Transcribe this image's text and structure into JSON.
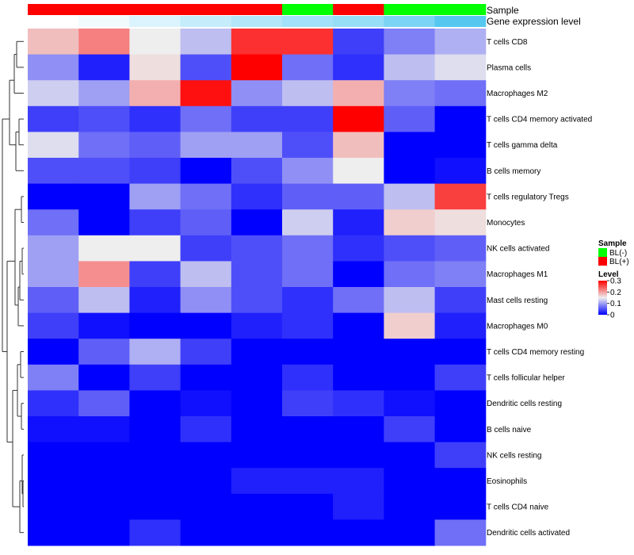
{
  "chart_data": {
    "type": "heatmap",
    "annotations": {
      "sample": {
        "title": "Sample",
        "values": [
          "BL(+)",
          "BL(+)",
          "BL(+)",
          "BL(+)",
          "BL(+)",
          "BL(-)",
          "BL(+)",
          "BL(-)",
          "BL(-)"
        ]
      },
      "gene_expression": {
        "title": "Gene expression level",
        "values": [
          0.0,
          0.08,
          0.22,
          0.35,
          0.45,
          0.55,
          0.62,
          0.78,
          1.0
        ]
      }
    },
    "rows": [
      "T cells CD8",
      "Plasma cells",
      "Macrophages M2",
      "T cells CD4 memory activated",
      "T cells gamma delta",
      "B cells memory",
      "T cells regulatory  Tregs",
      "Monocytes",
      "NK cells activated",
      "Macrophages M1",
      "Mast cells resting",
      "Macrophages M0",
      "T cells CD4 memory resting",
      "T cells follicular helper",
      "Dendritic cells resting",
      "B cells naive",
      "NK cells resting",
      "Eosinophils",
      "T cells CD4 naive",
      "Dendritic cells activated"
    ],
    "values": [
      [
        0.18,
        0.22,
        0.15,
        0.12,
        0.27,
        0.27,
        0.04,
        0.08,
        0.11
      ],
      [
        0.09,
        0.02,
        0.16,
        0.05,
        0.3,
        0.07,
        0.03,
        0.12,
        0.14
      ],
      [
        0.13,
        0.1,
        0.19,
        0.29,
        0.09,
        0.12,
        0.19,
        0.08,
        0.07
      ],
      [
        0.04,
        0.05,
        0.03,
        0.07,
        0.04,
        0.04,
        0.3,
        0.06,
        0.0
      ],
      [
        0.14,
        0.07,
        0.06,
        0.1,
        0.1,
        0.05,
        0.18,
        0.0,
        0.0
      ],
      [
        0.05,
        0.05,
        0.04,
        0.0,
        0.05,
        0.09,
        0.15,
        0.0,
        0.01
      ],
      [
        0.0,
        0.0,
        0.1,
        0.07,
        0.03,
        0.06,
        0.06,
        0.12,
        0.26
      ],
      [
        0.07,
        0.0,
        0.04,
        0.06,
        0.0,
        0.13,
        0.02,
        0.17,
        0.16
      ],
      [
        0.1,
        0.15,
        0.15,
        0.04,
        0.05,
        0.07,
        0.03,
        0.05,
        0.06
      ],
      [
        0.1,
        0.21,
        0.04,
        0.12,
        0.05,
        0.07,
        0.0,
        0.07,
        0.08
      ],
      [
        0.06,
        0.12,
        0.02,
        0.09,
        0.05,
        0.03,
        0.07,
        0.12,
        0.04
      ],
      [
        0.04,
        0.01,
        0.0,
        0.0,
        0.02,
        0.03,
        0.0,
        0.17,
        0.02
      ],
      [
        0.0,
        0.06,
        0.11,
        0.04,
        0.0,
        0.0,
        0.0,
        0.0,
        0.0
      ],
      [
        0.08,
        0.0,
        0.04,
        0.0,
        0.0,
        0.03,
        0.0,
        0.0,
        0.04
      ],
      [
        0.03,
        0.06,
        0.0,
        0.01,
        0.0,
        0.04,
        0.03,
        0.01,
        0.0
      ],
      [
        0.01,
        0.01,
        0.0,
        0.03,
        0.0,
        0.0,
        0.0,
        0.04,
        0.0
      ],
      [
        0.0,
        0.0,
        0.0,
        0.0,
        0.0,
        0.0,
        0.0,
        0.0,
        0.04
      ],
      [
        0.0,
        0.0,
        0.0,
        0.0,
        0.02,
        0.02,
        0.02,
        0.0,
        0.0
      ],
      [
        0.0,
        0.0,
        0.0,
        0.0,
        0.0,
        0.0,
        0.02,
        0.0,
        0.0
      ],
      [
        0.0,
        0.0,
        0.03,
        0.0,
        0.0,
        0.0,
        0.0,
        0.0,
        0.07
      ]
    ],
    "color_scale": {
      "min": 0,
      "mid": 0.15,
      "max": 0.3,
      "low_color": "#0000ff",
      "mid_color": "#eeeeee",
      "high_color": "#ff0000"
    },
    "legend": {
      "sample": {
        "title": "Sample",
        "entries": [
          {
            "label": "BL(-)",
            "color": "#00ff00"
          },
          {
            "label": "BL(+)",
            "color": "#ff0000"
          }
        ]
      },
      "level": {
        "title": "Level",
        "ticks": [
          {
            "value": 0.3,
            "label": "0.3"
          },
          {
            "value": 0.2,
            "label": "0.2"
          },
          {
            "value": 0.1,
            "label": "0.1"
          },
          {
            "value": 0.0,
            "label": "0"
          }
        ]
      }
    },
    "sample_colors": {
      "BL(-)": "#00ff00",
      "BL(+)": "#ff0000"
    },
    "gene_expression_colors": {
      "low": "#ffffff",
      "high": "#56c8f0"
    }
  }
}
